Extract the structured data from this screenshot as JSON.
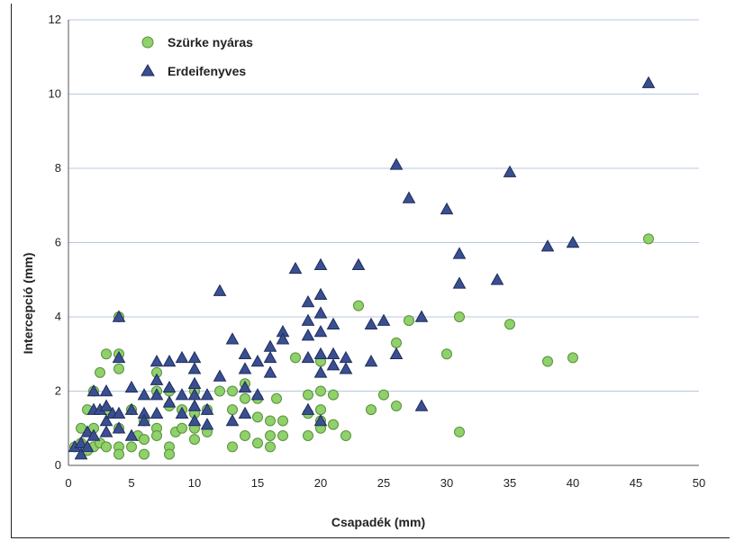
{
  "chart_data": {
    "type": "scatter",
    "title": "",
    "xlabel": "Csapadék (mm)",
    "ylabel": "Intercepció (mm)",
    "xlim": [
      0,
      50
    ],
    "ylim": [
      0,
      12
    ],
    "xticks": [
      "0",
      "5",
      "10",
      "15",
      "20",
      "25",
      "30",
      "35",
      "40",
      "45",
      "50"
    ],
    "yticks": [
      "0",
      "2",
      "4",
      "6",
      "8",
      "10",
      "12"
    ],
    "grid": "horizontal",
    "legend_position": "top-left",
    "series": [
      {
        "name": "Szürke nyáras",
        "marker": "circle",
        "color": "#8fd16a",
        "stroke": "#5a8f3c",
        "points": [
          [
            0.5,
            0.5
          ],
          [
            1,
            1.0
          ],
          [
            1,
            0.6
          ],
          [
            1.5,
            1.5
          ],
          [
            1.5,
            0.4
          ],
          [
            2,
            2.0
          ],
          [
            2,
            1.0
          ],
          [
            2,
            0.5
          ],
          [
            2.5,
            2.5
          ],
          [
            2.5,
            0.6
          ],
          [
            3,
            3.0
          ],
          [
            3,
            1.5
          ],
          [
            3,
            0.5
          ],
          [
            4,
            4.0
          ],
          [
            4,
            3.0
          ],
          [
            4,
            2.6
          ],
          [
            4,
            1.0
          ],
          [
            4,
            0.5
          ],
          [
            4,
            0.3
          ],
          [
            5,
            1.5
          ],
          [
            5,
            0.5
          ],
          [
            5.5,
            0.8
          ],
          [
            6,
            1.2
          ],
          [
            6,
            0.7
          ],
          [
            6,
            0.3
          ],
          [
            7,
            2.5
          ],
          [
            7,
            2.0
          ],
          [
            7,
            1.0
          ],
          [
            7,
            0.8
          ],
          [
            8,
            2.0
          ],
          [
            8,
            1.6
          ],
          [
            8,
            0.5
          ],
          [
            8,
            0.3
          ],
          [
            8.5,
            0.9
          ],
          [
            9,
            1.5
          ],
          [
            9,
            1.0
          ],
          [
            10,
            2.0
          ],
          [
            10,
            1.4
          ],
          [
            10,
            1.0
          ],
          [
            10,
            0.7
          ],
          [
            11,
            1.5
          ],
          [
            11,
            0.9
          ],
          [
            12,
            2.0
          ],
          [
            13,
            2.0
          ],
          [
            13,
            1.5
          ],
          [
            13,
            0.5
          ],
          [
            14,
            2.2
          ],
          [
            14,
            1.8
          ],
          [
            14,
            0.8
          ],
          [
            15,
            1.8
          ],
          [
            15,
            1.3
          ],
          [
            15,
            0.6
          ],
          [
            16,
            1.2
          ],
          [
            16,
            0.8
          ],
          [
            16,
            0.5
          ],
          [
            16.5,
            1.8
          ],
          [
            17,
            1.2
          ],
          [
            17,
            0.8
          ],
          [
            18,
            2.9
          ],
          [
            19,
            1.9
          ],
          [
            19,
            1.4
          ],
          [
            19,
            0.8
          ],
          [
            20,
            2.8
          ],
          [
            20,
            2.0
          ],
          [
            20,
            1.5
          ],
          [
            20,
            1.2
          ],
          [
            20,
            1.0
          ],
          [
            21,
            1.9
          ],
          [
            21,
            1.1
          ],
          [
            22,
            0.8
          ],
          [
            23,
            4.3
          ],
          [
            24,
            1.5
          ],
          [
            25,
            1.9
          ],
          [
            26,
            3.3
          ],
          [
            26,
            1.6
          ],
          [
            27,
            3.9
          ],
          [
            30,
            3.0
          ],
          [
            31,
            4.0
          ],
          [
            31,
            0.9
          ],
          [
            35,
            3.8
          ],
          [
            38,
            2.8
          ],
          [
            40,
            2.9
          ],
          [
            46,
            6.1
          ]
        ]
      },
      {
        "name": "Erdeifenyves",
        "marker": "triangle",
        "color": "#3a4f91",
        "stroke": "#1f2d5c",
        "points": [
          [
            0.5,
            0.5
          ],
          [
            1,
            0.6
          ],
          [
            1,
            0.3
          ],
          [
            1.5,
            0.9
          ],
          [
            1.5,
            0.5
          ],
          [
            2,
            2.0
          ],
          [
            2,
            1.5
          ],
          [
            2,
            0.8
          ],
          [
            2.5,
            1.5
          ],
          [
            3,
            2.0
          ],
          [
            3,
            1.6
          ],
          [
            3,
            1.2
          ],
          [
            3,
            0.9
          ],
          [
            3.5,
            1.4
          ],
          [
            4,
            4.0
          ],
          [
            4,
            2.9
          ],
          [
            4,
            1.4
          ],
          [
            4,
            1.0
          ],
          [
            5,
            2.1
          ],
          [
            5,
            1.5
          ],
          [
            5,
            0.8
          ],
          [
            6,
            1.9
          ],
          [
            6,
            1.4
          ],
          [
            6,
            1.2
          ],
          [
            7,
            2.8
          ],
          [
            7,
            2.3
          ],
          [
            7,
            1.9
          ],
          [
            7,
            1.4
          ],
          [
            8,
            2.8
          ],
          [
            8,
            2.1
          ],
          [
            8,
            1.7
          ],
          [
            9,
            2.9
          ],
          [
            9,
            1.9
          ],
          [
            9,
            1.4
          ],
          [
            10,
            2.9
          ],
          [
            10,
            2.6
          ],
          [
            10,
            2.2
          ],
          [
            10,
            1.9
          ],
          [
            10,
            1.6
          ],
          [
            10,
            1.2
          ],
          [
            11,
            1.9
          ],
          [
            11,
            1.5
          ],
          [
            11,
            1.1
          ],
          [
            12,
            4.7
          ],
          [
            12,
            2.4
          ],
          [
            13,
            3.4
          ],
          [
            13,
            1.2
          ],
          [
            14,
            3.0
          ],
          [
            14,
            2.6
          ],
          [
            14,
            2.1
          ],
          [
            14,
            1.4
          ],
          [
            15,
            2.8
          ],
          [
            15,
            1.9
          ],
          [
            16,
            3.2
          ],
          [
            16,
            2.9
          ],
          [
            16,
            2.5
          ],
          [
            17,
            3.6
          ],
          [
            17,
            3.4
          ],
          [
            18,
            5.3
          ],
          [
            19,
            4.4
          ],
          [
            19,
            3.9
          ],
          [
            19,
            3.5
          ],
          [
            19,
            2.9
          ],
          [
            19,
            1.5
          ],
          [
            20,
            5.4
          ],
          [
            20,
            4.6
          ],
          [
            20,
            4.1
          ],
          [
            20,
            3.6
          ],
          [
            20,
            3.0
          ],
          [
            20,
            2.5
          ],
          [
            20,
            1.2
          ],
          [
            21,
            3.8
          ],
          [
            21,
            3.0
          ],
          [
            21,
            2.7
          ],
          [
            22,
            2.9
          ],
          [
            22,
            2.6
          ],
          [
            23,
            5.4
          ],
          [
            24,
            3.8
          ],
          [
            24,
            2.8
          ],
          [
            25,
            3.9
          ],
          [
            26,
            8.1
          ],
          [
            26,
            3.0
          ],
          [
            27,
            7.2
          ],
          [
            28,
            4.0
          ],
          [
            28,
            1.6
          ],
          [
            30,
            6.9
          ],
          [
            31,
            5.7
          ],
          [
            31,
            4.9
          ],
          [
            34,
            5.0
          ],
          [
            35,
            7.9
          ],
          [
            38,
            5.9
          ],
          [
            40,
            6.0
          ],
          [
            46,
            10.3
          ]
        ]
      }
    ]
  }
}
